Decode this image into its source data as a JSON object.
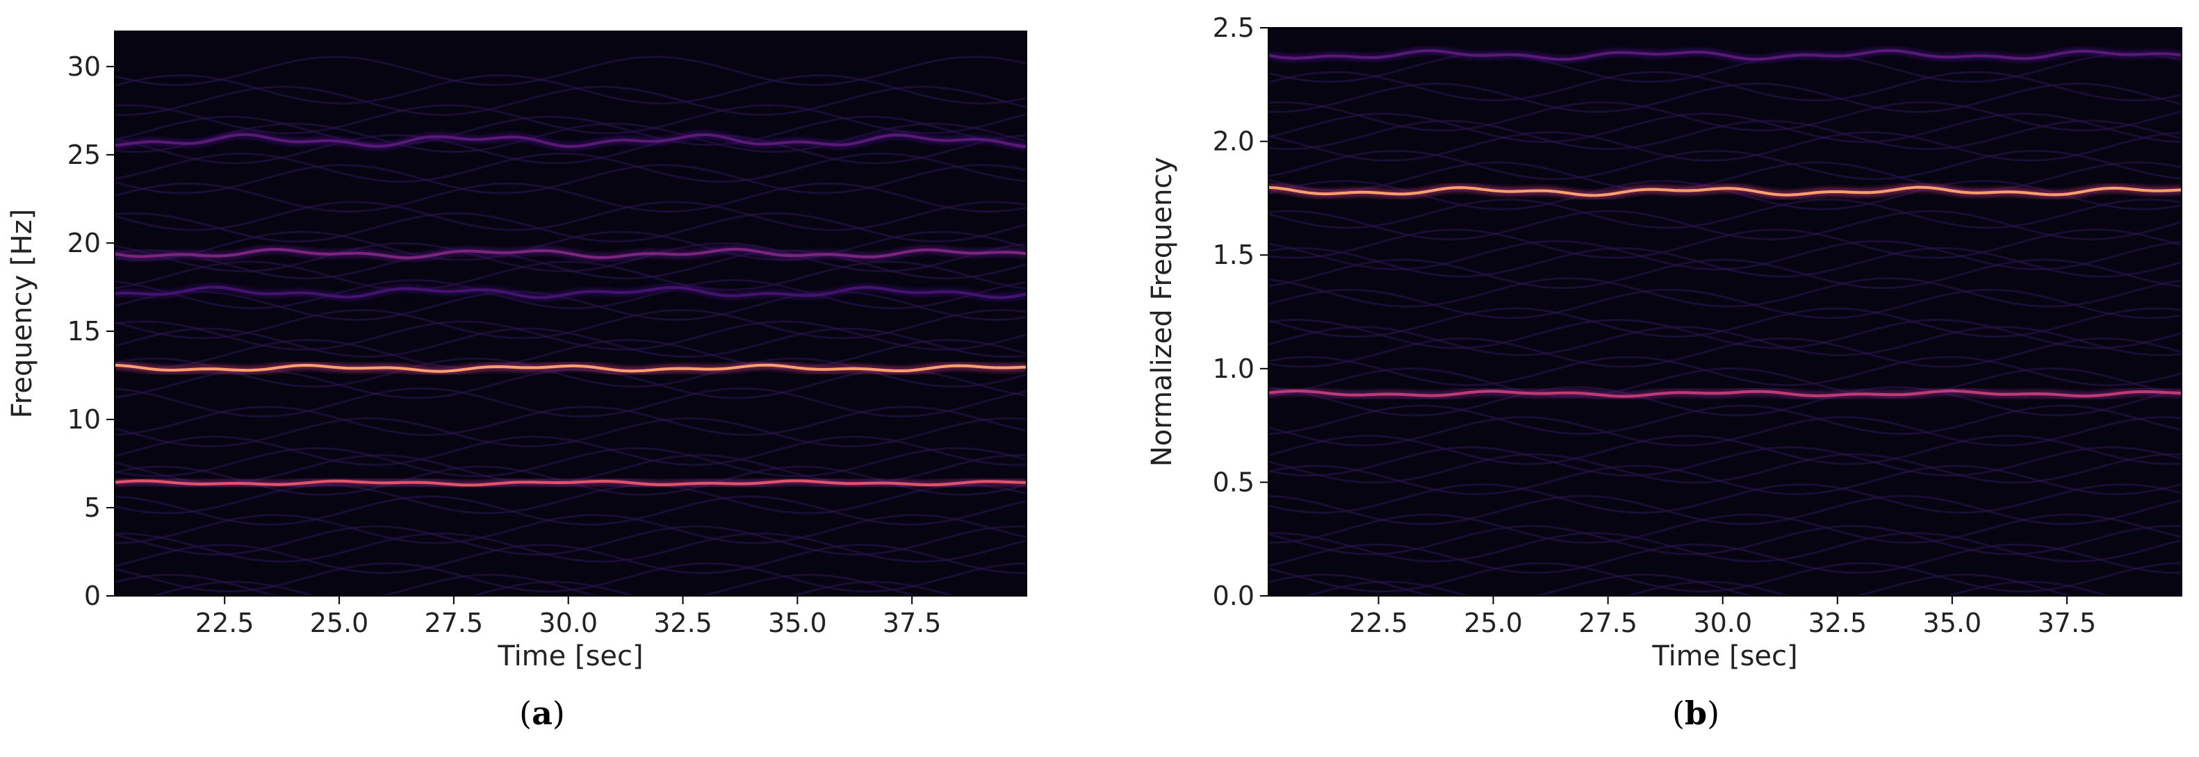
{
  "chart_data": [
    {
      "type": "heatmap",
      "panel_label": "a",
      "xlabel": "Time [sec]",
      "ylabel": "Frequency [Hz]",
      "xlim": [
        20.1,
        40.0
      ],
      "ylim": [
        0,
        32
      ],
      "xticks": [
        "22.5",
        "25.0",
        "27.5",
        "30.0",
        "32.5",
        "35.0",
        "37.5"
      ],
      "yticks": [
        "0",
        "5",
        "10",
        "15",
        "20",
        "25",
        "30"
      ],
      "colormap": "magma",
      "background_color": "#050410",
      "ridges": [
        {
          "freq": 6.4,
          "intensity": 0.72,
          "wobble": 0.12
        },
        {
          "freq": 12.9,
          "intensity": 0.85,
          "wobble": 0.18
        },
        {
          "freq": 19.4,
          "intensity": 0.45,
          "wobble": 0.25
        },
        {
          "freq": 25.8,
          "intensity": 0.35,
          "wobble": 0.35
        },
        {
          "freq": 17.2,
          "intensity": 0.28,
          "wobble": 0.3
        }
      ]
    },
    {
      "type": "heatmap",
      "panel_label": "b",
      "xlabel": "Time [sec]",
      "ylabel": "Normalized Frequency",
      "xlim": [
        20.1,
        40.0
      ],
      "ylim": [
        0,
        2.5
      ],
      "xticks": [
        "22.5",
        "25.0",
        "27.5",
        "30.0",
        "32.5",
        "35.0",
        "37.5"
      ],
      "yticks": [
        "0.0",
        "0.5",
        "1.0",
        "1.5",
        "2.0",
        "2.5"
      ],
      "colormap": "magma",
      "background_color": "#050410",
      "ridges": [
        {
          "freq": 0.89,
          "intensity": 0.62,
          "wobble": 0.012
        },
        {
          "freq": 1.78,
          "intensity": 0.85,
          "wobble": 0.018
        },
        {
          "freq": 2.38,
          "intensity": 0.35,
          "wobble": 0.02
        }
      ]
    }
  ]
}
